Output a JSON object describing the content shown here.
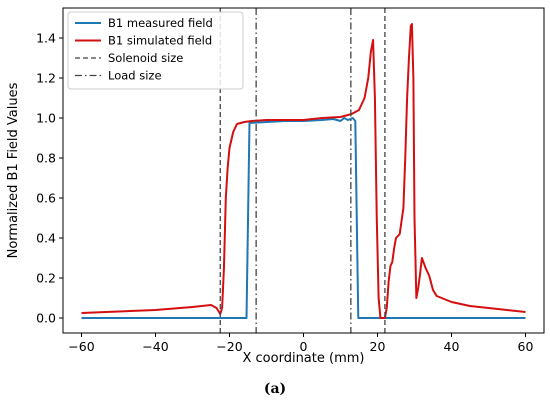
{
  "chart_data": {
    "type": "line",
    "xlabel": "X coordinate (mm)",
    "ylabel": "Normalized B1 Field Values",
    "xlim": [
      -65,
      65
    ],
    "ylim": [
      -0.075,
      1.55
    ],
    "xticks": [
      -60,
      -40,
      -20,
      0,
      20,
      40,
      60
    ],
    "xtick_labels": [
      "−60",
      "−40",
      "−20",
      "0",
      "20",
      "40",
      "60"
    ],
    "yticks": [
      0.0,
      0.2,
      0.4,
      0.6,
      0.8,
      1.0,
      1.2,
      1.4
    ],
    "ytick_labels": [
      "0.0",
      "0.2",
      "0.4",
      "0.6",
      "0.8",
      "1.0",
      "1.2",
      "1.4"
    ],
    "grid": false,
    "legend_position": "top-left",
    "caption": "(a)",
    "series": [
      {
        "name": "B1 measured field",
        "color": "#1f77b4",
        "style": "solid",
        "x": [
          -60,
          -15.4,
          -14.6,
          -10,
          -5,
          0,
          5,
          8,
          10,
          11,
          12,
          13.3,
          14.0,
          14.8,
          60
        ],
        "y": [
          0,
          0,
          0.975,
          0.98,
          0.985,
          0.985,
          0.99,
          0.995,
          0.985,
          1.0,
          0.99,
          1.0,
          0.985,
          0,
          0
        ]
      },
      {
        "name": "B1 simulated field",
        "color": "#d40f0f",
        "style": "solid",
        "x": [
          -60,
          -40,
          -30,
          -25,
          -23.5,
          -22.5,
          -22,
          -21.5,
          -21,
          -20.5,
          -20,
          -19,
          -18,
          -16,
          -14,
          -10,
          0,
          5,
          10,
          13,
          15,
          16.5,
          17.5,
          18.2,
          18.8,
          19.3,
          19.8,
          20.3,
          20.8,
          21.2,
          22,
          22.5,
          23,
          23.5,
          24,
          24.5,
          25,
          26,
          27,
          27.5,
          28,
          28.5,
          29,
          29.3,
          29.7,
          30,
          30.5,
          31,
          31.5,
          32,
          33,
          34,
          35,
          36,
          40,
          45,
          50,
          55,
          60
        ],
        "y": [
          0.025,
          0.04,
          0.055,
          0.065,
          0.05,
          0.02,
          0.05,
          0.25,
          0.6,
          0.75,
          0.85,
          0.93,
          0.97,
          0.98,
          0.985,
          0.99,
          0.99,
          1.0,
          1.005,
          1.02,
          1.04,
          1.1,
          1.2,
          1.33,
          1.39,
          1.1,
          0.5,
          0.1,
          0.0,
          0.0,
          0.0,
          0.05,
          0.18,
          0.26,
          0.28,
          0.35,
          0.4,
          0.42,
          0.55,
          0.8,
          1.1,
          1.3,
          1.46,
          1.47,
          1.2,
          0.5,
          0.1,
          0.15,
          0.22,
          0.3,
          0.25,
          0.21,
          0.14,
          0.11,
          0.08,
          0.06,
          0.05,
          0.04,
          0.03
        ]
      }
    ],
    "vlines": [
      {
        "name": "Solenoid size",
        "style": "dashed",
        "color": "#444444",
        "x": [
          -22.5,
          22
        ]
      },
      {
        "name": "Load size",
        "style": "dashdot",
        "color": "#444444",
        "x": [
          -12.8,
          12.8
        ]
      }
    ]
  }
}
